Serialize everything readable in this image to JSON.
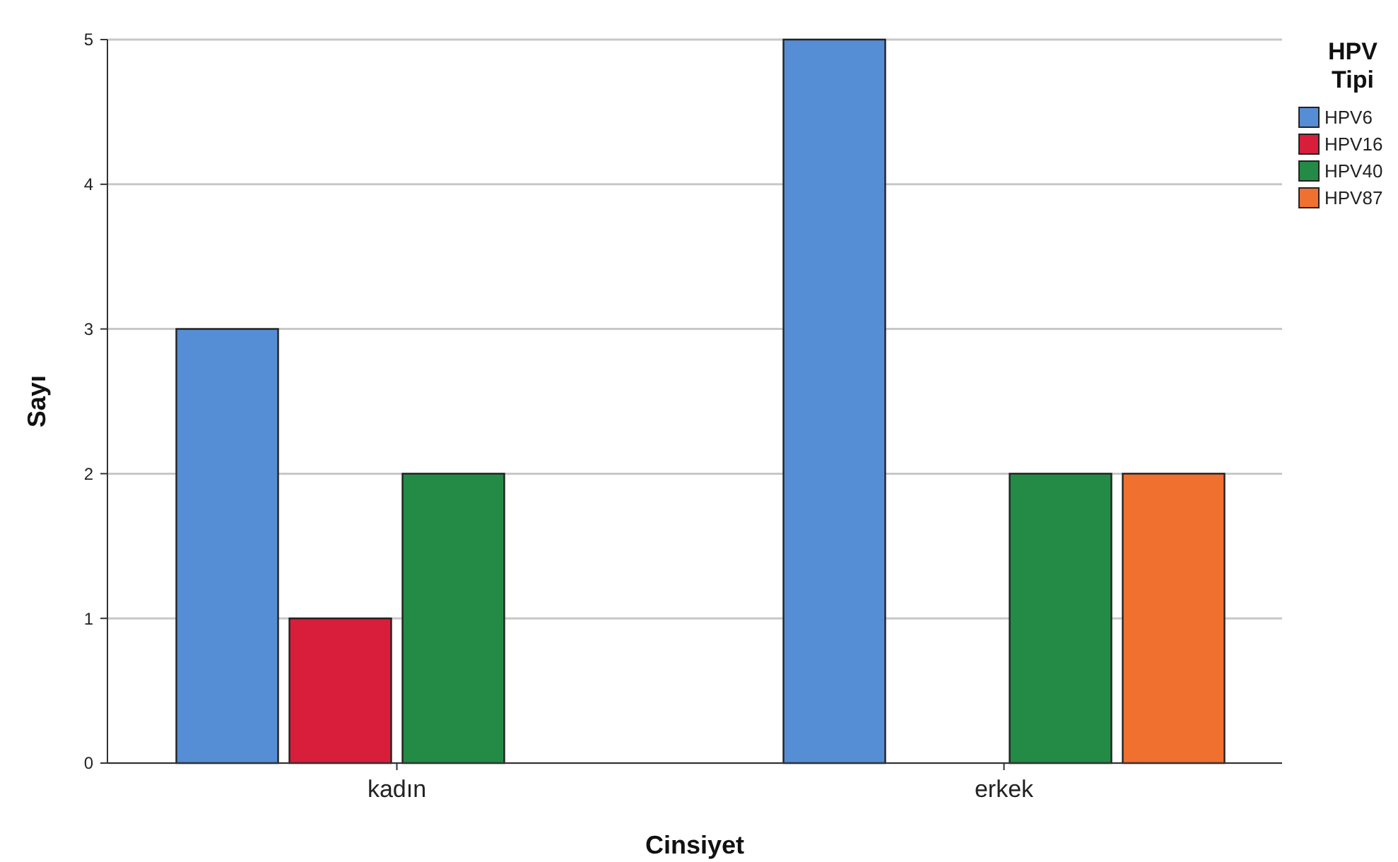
{
  "chart_data": {
    "type": "bar",
    "xlabel": "Cinsiyet",
    "ylabel": "Sayı",
    "legend_title": "HPV Tipi",
    "categories": [
      "kadın",
      "erkek"
    ],
    "series": [
      {
        "name": "HPV6",
        "color": "#558ed5",
        "values": [
          3,
          5
        ]
      },
      {
        "name": "HPV16",
        "color": "#d81e3a",
        "values": [
          1,
          null
        ]
      },
      {
        "name": "HPV40",
        "color": "#238b45",
        "values": [
          2,
          2
        ]
      },
      {
        "name": "HPV87",
        "color": "#f07030",
        "values": [
          null,
          2
        ]
      }
    ],
    "ylim": [
      0,
      5.0
    ],
    "yticks": [
      0,
      1,
      2,
      3,
      4,
      5
    ],
    "grid": "y",
    "legend": "top right"
  }
}
